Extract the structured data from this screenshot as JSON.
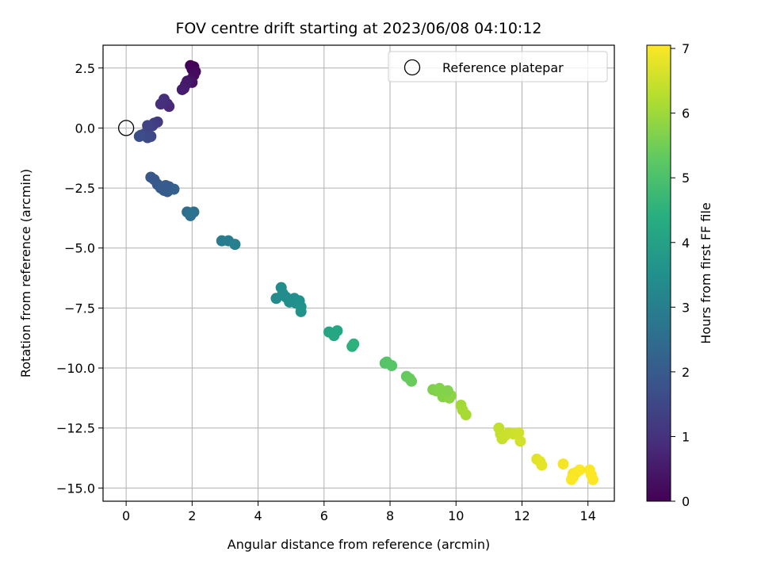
{
  "chart_data": {
    "type": "scatter",
    "title": "FOV centre drift starting at 2023/06/08 04:10:12",
    "xlabel": "Angular distance from reference (arcmin)",
    "ylabel": "Rotation from reference (arcmin)",
    "xlim": [
      -0.7,
      14.8
    ],
    "ylim": [
      -15.55,
      3.45
    ],
    "xticks": [
      0,
      2,
      4,
      6,
      8,
      10,
      12,
      14
    ],
    "xtick_labels": [
      "0",
      "2",
      "4",
      "6",
      "8",
      "10",
      "12",
      "14"
    ],
    "yticks": [
      2.5,
      0.0,
      -2.5,
      -5.0,
      -7.5,
      -10.0,
      -12.5,
      -15.0
    ],
    "ytick_labels": [
      "2.5",
      "0.0",
      "−2.5",
      "−5.0",
      "−7.5",
      "−10.0",
      "−12.5",
      "−15.0"
    ],
    "grid": true,
    "legend": {
      "position": "top-right",
      "entries": [
        {
          "label": "Reference platepar",
          "marker": "open-circle"
        }
      ]
    },
    "reference_point": {
      "x": 0.0,
      "y": 0.0
    },
    "colorbar": {
      "label": "Hours from first FF file",
      "range": [
        0,
        7.05
      ],
      "ticks": [
        0,
        1,
        2,
        3,
        4,
        5,
        6,
        7
      ],
      "tick_labels": [
        "0",
        "1",
        "2",
        "3",
        "4",
        "5",
        "6",
        "7"
      ],
      "colormap": "viridis"
    },
    "x": [
      1.95,
      2.05,
      2.0,
      2.1,
      2.05,
      1.95,
      2.0,
      1.85,
      1.75,
      1.8,
      1.7,
      1.3,
      1.25,
      1.15,
      1.05,
      0.95,
      0.85,
      0.8,
      0.7,
      0.65,
      0.55,
      0.75,
      0.65,
      0.45,
      0.4,
      0.75,
      0.85,
      0.95,
      1.05,
      1.1,
      1.15,
      1.25,
      1.3,
      1.35,
      1.45,
      1.2,
      1.85,
      1.95,
      2.05,
      1.95,
      2.9,
      3.1,
      3.3,
      4.55,
      4.7,
      4.75,
      4.85,
      4.95,
      5.1,
      5.15,
      5.25,
      5.3,
      5.3,
      6.15,
      6.3,
      6.4,
      6.85,
      6.9,
      7.85,
      7.9,
      8.05,
      8.5,
      8.6,
      8.65,
      9.3,
      9.4,
      9.5,
      9.6,
      9.7,
      9.8,
      9.85,
      9.75,
      10.15,
      10.2,
      10.3,
      11.3,
      11.35,
      11.4,
      11.5,
      11.6,
      11.75,
      11.9,
      11.95,
      12.45,
      12.55,
      12.6,
      13.25,
      13.55,
      13.65,
      13.75,
      13.55,
      13.5,
      14.05,
      14.1,
      14.15
    ],
    "y": [
      2.6,
      2.55,
      2.45,
      2.35,
      2.2,
      2.0,
      1.9,
      1.95,
      1.65,
      1.8,
      1.6,
      0.9,
      1.0,
      1.2,
      1.0,
      0.25,
      0.2,
      0.1,
      0.05,
      0.1,
      -0.25,
      -0.35,
      -0.4,
      -0.3,
      -0.35,
      -2.05,
      -2.15,
      -2.35,
      -2.5,
      -2.45,
      -2.6,
      -2.65,
      -2.45,
      -2.55,
      -2.55,
      -2.4,
      -3.5,
      -3.65,
      -3.5,
      -3.55,
      -4.7,
      -4.7,
      -4.85,
      -7.1,
      -6.65,
      -6.9,
      -7.05,
      -7.25,
      -7.1,
      -7.3,
      -7.2,
      -7.45,
      -7.65,
      -8.5,
      -8.65,
      -8.45,
      -9.1,
      -9.0,
      -9.8,
      -9.75,
      -9.9,
      -10.35,
      -10.45,
      -10.55,
      -10.9,
      -10.95,
      -10.85,
      -11.2,
      -11.1,
      -11.25,
      -11.15,
      -10.95,
      -11.55,
      -11.75,
      -11.95,
      -12.5,
      -12.75,
      -12.95,
      -12.8,
      -12.7,
      -12.75,
      -12.7,
      -13.05,
      -13.8,
      -13.9,
      -14.05,
      -14.0,
      -14.4,
      -14.35,
      -14.25,
      -14.55,
      -14.65,
      -14.25,
      -14.45,
      -14.65
    ],
    "hours": [
      0.0,
      0.05,
      0.1,
      0.15,
      0.2,
      0.3,
      0.35,
      0.4,
      0.45,
      0.5,
      0.55,
      0.8,
      0.85,
      0.9,
      0.95,
      1.2,
      1.25,
      1.3,
      1.35,
      1.4,
      1.45,
      1.5,
      1.55,
      1.6,
      1.65,
      1.9,
      1.92,
      1.95,
      1.98,
      2.0,
      2.02,
      2.05,
      2.08,
      2.1,
      2.12,
      2.0,
      2.5,
      2.55,
      2.6,
      2.65,
      2.9,
      2.95,
      3.0,
      3.35,
      3.38,
      3.4,
      3.42,
      3.45,
      3.48,
      3.5,
      3.52,
      3.55,
      3.58,
      4.1,
      4.15,
      4.2,
      4.45,
      4.5,
      5.1,
      5.12,
      5.15,
      5.35,
      5.38,
      5.4,
      5.65,
      5.68,
      5.7,
      5.72,
      5.75,
      5.78,
      5.8,
      5.7,
      6.05,
      6.08,
      6.1,
      6.4,
      6.42,
      6.45,
      6.48,
      6.5,
      6.52,
      6.55,
      6.58,
      6.75,
      6.78,
      6.8,
      6.95,
      7.0,
      7.0,
      7.02,
      7.0,
      7.02,
      7.03,
      7.04,
      7.05
    ]
  }
}
